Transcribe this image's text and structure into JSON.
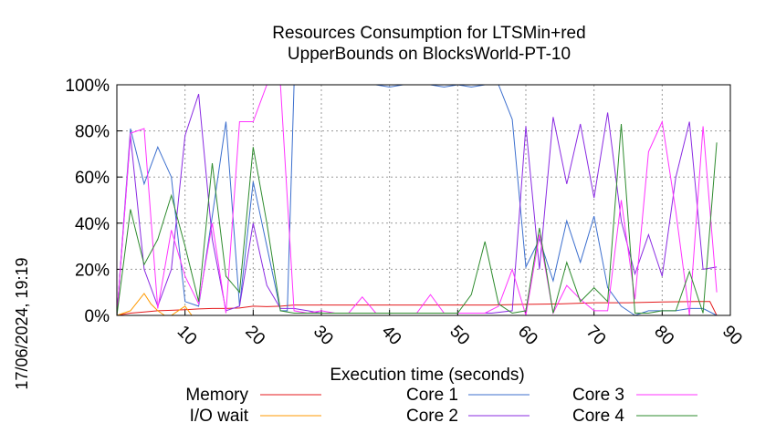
{
  "chart_data": {
    "type": "line",
    "title_line1": "Resources Consumption for LTSMin+red",
    "title_line2": "UpperBounds on BlocksWorld-PT-10",
    "xlabel": "Execution time (seconds)",
    "ylabel": "",
    "xlim": [
      0,
      90
    ],
    "ylim": [
      0,
      100
    ],
    "x_ticks": [
      10,
      20,
      30,
      40,
      50,
      60,
      70,
      80,
      90
    ],
    "y_ticks": [
      0,
      20,
      40,
      60,
      80,
      100
    ],
    "y_tick_labels": [
      "0%",
      "20%",
      "40%",
      "60%",
      "80%",
      "100%"
    ],
    "grid": true,
    "legend_position": "bottom",
    "timestamp": "17/06/2024, 19:19",
    "series": [
      {
        "name": "Memory",
        "color": "#e41a1c",
        "x": [
          0,
          2,
          4,
          6,
          8,
          10,
          12,
          14,
          16,
          18,
          20,
          22,
          24,
          26,
          28,
          30,
          35,
          40,
          45,
          50,
          55,
          60,
          65,
          70,
          75,
          80,
          85,
          87,
          88
        ],
        "y": [
          0,
          1,
          1.5,
          2,
          2.2,
          2.5,
          2.8,
          3,
          3,
          3.2,
          4,
          3.8,
          4,
          4.5,
          4.5,
          4.5,
          4.5,
          4.5,
          4.5,
          4.5,
          4.5,
          4.8,
          5,
          5.5,
          5.5,
          5.8,
          6,
          6,
          0
        ]
      },
      {
        "name": "I/O wait",
        "color": "#ff9900",
        "x": [
          0,
          2,
          4,
          5,
          6,
          7,
          8,
          9,
          10,
          11,
          12,
          13,
          20,
          30,
          40,
          50,
          60,
          70,
          80,
          88
        ],
        "y": [
          0,
          2,
          9.5,
          5,
          2,
          0,
          0,
          2,
          4,
          0,
          0,
          0,
          0,
          0,
          0,
          0,
          0,
          0,
          0,
          0
        ]
      },
      {
        "name": "Core 1",
        "color": "#3c6fce",
        "x": [
          0,
          2,
          4,
          6,
          8,
          10,
          12,
          14,
          16,
          18,
          20,
          22,
          24,
          25,
          26,
          28,
          30,
          32,
          34,
          36,
          38,
          40,
          42,
          44,
          46,
          48,
          50,
          52,
          54,
          56,
          58,
          60,
          62,
          64,
          66,
          68,
          70,
          72,
          74,
          76,
          78,
          80,
          82,
          84,
          86,
          88
        ],
        "y": [
          0,
          81,
          57,
          73,
          60,
          6,
          4,
          43,
          84,
          4,
          58,
          30,
          2,
          2,
          100,
          100,
          100,
          100,
          100,
          100,
          100,
          99,
          100,
          100,
          100,
          99,
          100,
          99,
          100,
          100,
          85,
          21,
          33,
          15,
          41,
          23,
          43,
          12,
          4,
          0,
          2,
          2,
          2,
          3,
          3,
          0
        ],
        "visible_extra": "note"
      },
      {
        "name": "Core 2",
        "color": "#8a2be2",
        "x": [
          0,
          2,
          4,
          6,
          8,
          10,
          12,
          14,
          16,
          18,
          20,
          22,
          24,
          26,
          28,
          30,
          35,
          40,
          45,
          50,
          55,
          58,
          60,
          62,
          64,
          66,
          68,
          70,
          72,
          74,
          76,
          78,
          80,
          82,
          84,
          86,
          88
        ],
        "y": [
          0,
          78,
          20,
          4,
          20,
          78,
          96,
          33,
          2,
          4,
          40,
          13,
          3,
          3,
          2,
          1,
          1,
          1,
          1,
          1,
          1,
          2,
          82,
          20,
          86,
          57,
          83,
          51,
          88,
          41,
          18,
          35,
          17,
          60,
          84,
          20,
          21
        ]
      },
      {
        "name": "Core 3",
        "color": "#ff33ff",
        "x": [
          0,
          2,
          4,
          6,
          8,
          10,
          12,
          14,
          16,
          18,
          20,
          22,
          24,
          26,
          28,
          30,
          32,
          34,
          36,
          38,
          40,
          42,
          44,
          46,
          48,
          50,
          52,
          54,
          56,
          58,
          60,
          62,
          64,
          66,
          68,
          70,
          72,
          74,
          76,
          78,
          80,
          82,
          84,
          86,
          88
        ],
        "y": [
          0,
          79,
          81,
          3,
          37,
          17,
          5,
          40,
          1,
          84,
          84,
          100,
          100,
          2,
          1,
          2,
          1,
          1,
          8,
          1,
          1,
          1,
          1,
          9,
          1,
          1,
          1,
          1,
          4,
          20,
          0,
          35,
          1,
          13,
          7,
          2,
          2,
          50,
          7,
          71,
          84,
          45,
          0,
          82,
          10
        ]
      },
      {
        "name": "Core 4",
        "color": "#2e8b2e",
        "x": [
          0,
          2,
          4,
          6,
          8,
          10,
          12,
          14,
          16,
          18,
          20,
          22,
          24,
          26,
          28,
          30,
          35,
          40,
          45,
          50,
          52,
          54,
          56,
          58,
          60,
          62,
          64,
          66,
          68,
          70,
          72,
          74,
          76,
          78,
          80,
          82,
          84,
          86,
          88
        ],
        "y": [
          0,
          46,
          22,
          33,
          52,
          30,
          6,
          66,
          17,
          10,
          73,
          40,
          2,
          1,
          1,
          1,
          1,
          1,
          1,
          1,
          9,
          32,
          5,
          1,
          2,
          38,
          1,
          23,
          6,
          12,
          6,
          83,
          1,
          1,
          2,
          2,
          19,
          1,
          75
        ]
      }
    ]
  }
}
